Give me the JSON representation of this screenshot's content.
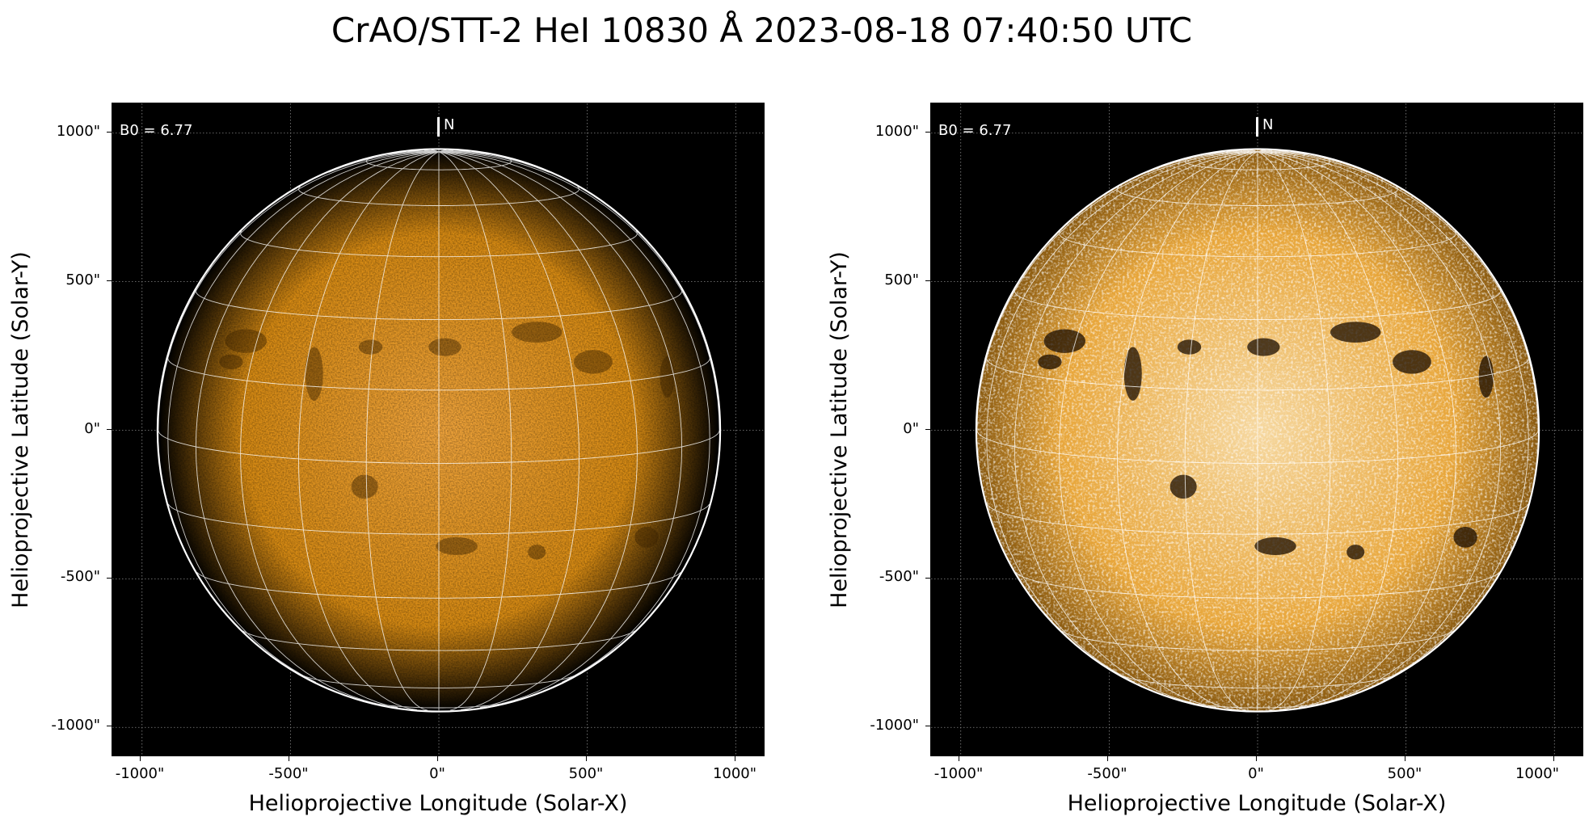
{
  "figure": {
    "title": "CrAO/STT-2 HeI 10830 Å 2023-08-18 07:40:50 UTC"
  },
  "panels": [
    {
      "id": "left",
      "variant": "raw intensity",
      "b0_label": "B0 = 6.77",
      "north_label": "N",
      "x_axis_label": "Helioprojective Longitude (Solar-X)",
      "y_axis_label": "Helioprojective Latitude (Solar-Y)",
      "x_ticks": [
        "-1000\"",
        "-500\"",
        "0\"",
        "500\"",
        "1000\""
      ],
      "y_ticks": [
        "1000\"",
        "500\"",
        "0\"",
        "-500\"",
        "-1000\""
      ],
      "disk_color": "#d68a13",
      "limb_color": "#000000"
    },
    {
      "id": "right",
      "variant": "contrast enhanced",
      "b0_label": "B0 = 6.77",
      "north_label": "N",
      "x_axis_label": "Helioprojective Longitude (Solar-X)",
      "y_axis_label": "Helioprojective Latitude (Solar-Y)",
      "x_ticks": [
        "-1000\"",
        "-500\"",
        "0\"",
        "500\"",
        "1000\""
      ],
      "y_ticks": [
        "1000\"",
        "500\"",
        "0\"",
        "-500\"",
        "-1000\""
      ],
      "disk_color": "#e8a63a",
      "limb_color": "#8a5a10"
    }
  ],
  "axes": {
    "x_range": [
      -1100,
      1100
    ],
    "y_range": [
      -1100,
      1100
    ],
    "tick_values": [
      -1000,
      -500,
      0,
      500,
      1000
    ],
    "solar_radius_arcsec": 945,
    "grid": true,
    "heliographic_grid": true,
    "b0_degrees": 6.77
  },
  "colors": {
    "background": "#000000",
    "grid": "#ffffff",
    "limb_circle": "#ffffff"
  }
}
